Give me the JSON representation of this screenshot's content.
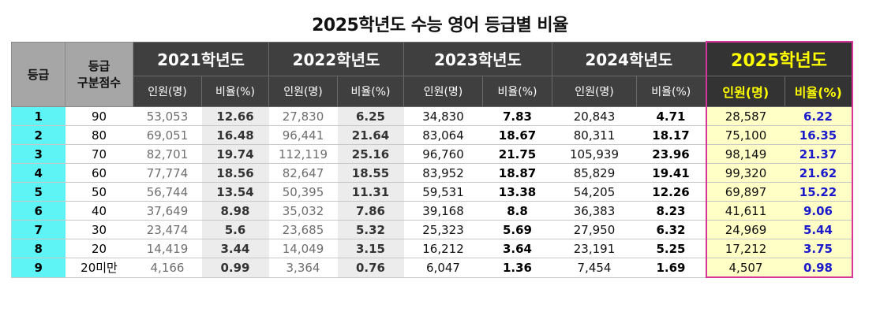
{
  "title": "2025학년도 수능 영어 등급별 비율",
  "header": {
    "grade": "등급",
    "cutoff_line1": "등급",
    "cutoff_line2": "구분점수",
    "years": [
      "2021학년도",
      "2022학년도",
      "2023학년도",
      "2024학년도",
      "2025학년도"
    ],
    "count_label": "인원(명)",
    "ratio_label": "비율(%)"
  },
  "rows": [
    {
      "grade": "1",
      "cutoff": "90",
      "y2021": [
        "53,053",
        "12.66"
      ],
      "y2022": [
        "27,830",
        "6.25"
      ],
      "y2023": [
        "34,830",
        "7.83"
      ],
      "y2024": [
        "20,843",
        "4.71"
      ],
      "y2025": [
        "28,587",
        "6.22"
      ]
    },
    {
      "grade": "2",
      "cutoff": "80",
      "y2021": [
        "69,051",
        "16.48"
      ],
      "y2022": [
        "96,441",
        "21.64"
      ],
      "y2023": [
        "83,064",
        "18.67"
      ],
      "y2024": [
        "80,311",
        "18.17"
      ],
      "y2025": [
        "75,100",
        "16.35"
      ]
    },
    {
      "grade": "3",
      "cutoff": "70",
      "y2021": [
        "82,701",
        "19.74"
      ],
      "y2022": [
        "112,119",
        "25.16"
      ],
      "y2023": [
        "96,760",
        "21.75"
      ],
      "y2024": [
        "105,939",
        "23.96"
      ],
      "y2025": [
        "98,149",
        "21.37"
      ]
    },
    {
      "grade": "4",
      "cutoff": "60",
      "y2021": [
        "77,774",
        "18.56"
      ],
      "y2022": [
        "82,647",
        "18.55"
      ],
      "y2023": [
        "83,952",
        "18.87"
      ],
      "y2024": [
        "85,829",
        "19.41"
      ],
      "y2025": [
        "99,320",
        "21.62"
      ]
    },
    {
      "grade": "5",
      "cutoff": "50",
      "y2021": [
        "56,744",
        "13.54"
      ],
      "y2022": [
        "50,395",
        "11.31"
      ],
      "y2023": [
        "59,531",
        "13.38"
      ],
      "y2024": [
        "54,205",
        "12.26"
      ],
      "y2025": [
        "69,897",
        "15.22"
      ]
    },
    {
      "grade": "6",
      "cutoff": "40",
      "y2021": [
        "37,649",
        "8.98"
      ],
      "y2022": [
        "35,032",
        "7.86"
      ],
      "y2023": [
        "39,168",
        "8.8"
      ],
      "y2024": [
        "36,383",
        "8.23"
      ],
      "y2025": [
        "41,611",
        "9.06"
      ]
    },
    {
      "grade": "7",
      "cutoff": "30",
      "y2021": [
        "23,474",
        "5.6"
      ],
      "y2022": [
        "23,685",
        "5.32"
      ],
      "y2023": [
        "25,323",
        "5.69"
      ],
      "y2024": [
        "27,950",
        "6.32"
      ],
      "y2025": [
        "24,969",
        "5.44"
      ]
    },
    {
      "grade": "8",
      "cutoff": "20",
      "y2021": [
        "14,419",
        "3.44"
      ],
      "y2022": [
        "14,049",
        "3.15"
      ],
      "y2023": [
        "16,212",
        "3.64"
      ],
      "y2024": [
        "23,191",
        "5.25"
      ],
      "y2025": [
        "17,212",
        "3.75"
      ]
    },
    {
      "grade": "9",
      "cutoff": "20미만",
      "y2021": [
        "4,166",
        "0.99"
      ],
      "y2022": [
        "3,364",
        "0.76"
      ],
      "y2023": [
        "6,047",
        "1.36"
      ],
      "y2024": [
        "7,454",
        "1.69"
      ],
      "y2025": [
        "4,507",
        "0.98"
      ]
    }
  ],
  "colors": {
    "header_dark": "#3f3f3f",
    "grade_cyan": "#5ef3f4",
    "highlight_yellow_bg": "#ffffc6",
    "highlight_border": "#d6339b",
    "highlight_header_text": "#ffff00",
    "ratio_blue": "#1a1acc"
  }
}
